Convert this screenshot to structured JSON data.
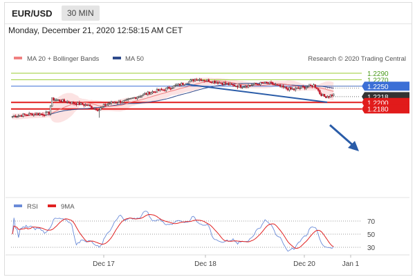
{
  "header": {
    "symbol": "EUR/USD",
    "timeframe": "30 MIN"
  },
  "datetime": "Monday, December 21, 2020 12:58:15 AM CET",
  "legend": {
    "ma20_bb": "MA 20 + Bollinger Bands",
    "ma50": "MA 50",
    "credit": "Research © 2020 Trading Central",
    "rsi": "RSI",
    "ma9": "9MA"
  },
  "colors": {
    "ma20_bb": "#f08080",
    "ma50": "#2e4a8c",
    "bull_candle": "#d9d9d9",
    "bear_candle": "#c0182a",
    "resistance_green": "#9acd32",
    "pivot_blue": "#3b6fd6",
    "support_red": "#e11b1b",
    "current_price_box": "#333333",
    "rsi_line": "#6a8bd8",
    "rsi_ma9_line": "#e02020",
    "arrow": "#2a5ca8"
  },
  "price_levels": [
    {
      "label": "1.2290",
      "value": 1.229,
      "type": "resistance"
    },
    {
      "label": "1.2270",
      "value": 1.227,
      "type": "resistance"
    },
    {
      "label": "1.2250",
      "value": 1.225,
      "type": "pivot"
    },
    {
      "label": "1.2218",
      "value": 1.2218,
      "type": "current"
    },
    {
      "label": "1.2200",
      "value": 1.22,
      "type": "support"
    },
    {
      "label": "1.2180",
      "value": 1.218,
      "type": "support"
    }
  ],
  "rsi_levels": [
    "70",
    "50",
    "30"
  ],
  "x_labels": [
    "Dec 17",
    "Dec 18",
    "Dec 20",
    "Jan 1"
  ],
  "chart_data": {
    "type": "candlestick",
    "instrument": "EUR/USD",
    "interval": "30 MIN",
    "price_series": {
      "name": "EUR/USD",
      "approx_path": [
        [
          0,
          1.2157
        ],
        [
          5,
          1.216
        ],
        [
          10,
          1.2163
        ],
        [
          15,
          1.2165
        ],
        [
          20,
          1.2164
        ],
        [
          24,
          1.2168
        ],
        [
          26,
          1.221
        ],
        [
          30,
          1.2207
        ],
        [
          35,
          1.2203
        ],
        [
          40,
          1.2198
        ],
        [
          45,
          1.2195
        ],
        [
          50,
          1.219
        ],
        [
          52,
          1.2185
        ],
        [
          55,
          1.218
        ],
        [
          57,
          1.2178
        ],
        [
          60,
          1.219
        ],
        [
          63,
          1.2197
        ],
        [
          66,
          1.22
        ],
        [
          70,
          1.2202
        ],
        [
          75,
          1.2205
        ],
        [
          80,
          1.2215
        ],
        [
          85,
          1.2222
        ],
        [
          90,
          1.223
        ],
        [
          95,
          1.2236
        ],
        [
          100,
          1.224
        ],
        [
          105,
          1.2248
        ],
        [
          110,
          1.2255
        ],
        [
          115,
          1.2262
        ],
        [
          118,
          1.2268
        ],
        [
          121,
          1.2272
        ],
        [
          125,
          1.227
        ],
        [
          130,
          1.2266
        ],
        [
          135,
          1.2262
        ],
        [
          140,
          1.2258
        ],
        [
          145,
          1.2252
        ],
        [
          150,
          1.225
        ],
        [
          155,
          1.2252
        ],
        [
          160,
          1.2256
        ],
        [
          165,
          1.226
        ],
        [
          170,
          1.2258
        ],
        [
          175,
          1.225
        ],
        [
          180,
          1.2243
        ],
        [
          185,
          1.224
        ],
        [
          190,
          1.2246
        ],
        [
          195,
          1.2249
        ],
        [
          198,
          1.2253
        ],
        [
          200,
          1.2245
        ],
        [
          202,
          1.2228
        ],
        [
          205,
          1.2218
        ],
        [
          208,
          1.222
        ],
        [
          211,
          1.2224
        ]
      ]
    },
    "indicators": {
      "ma20": "red line with pink Bollinger Bands",
      "ma50": "dark blue line",
      "trendline": "descending dark blue resistance line"
    },
    "levels": [
      1.229,
      1.227,
      1.225,
      1.2218,
      1.22,
      1.218
    ],
    "rsi": {
      "levels": [
        70,
        50,
        30
      ]
    },
    "x_tick_labels": [
      "Dec 17",
      "Dec 18",
      "Dec 20",
      "Jan 1"
    ]
  }
}
